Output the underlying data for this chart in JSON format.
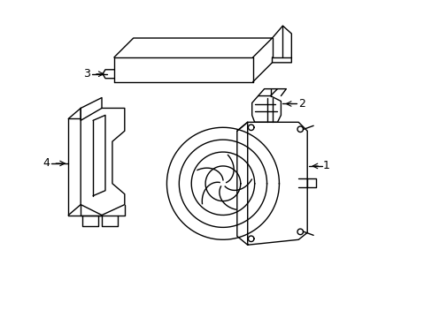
{
  "bg_color": "#ffffff",
  "line_color": "#000000",
  "label_color": "#000000",
  "line_width": 1.0,
  "fig_width": 4.89,
  "fig_height": 3.6,
  "dpi": 100
}
